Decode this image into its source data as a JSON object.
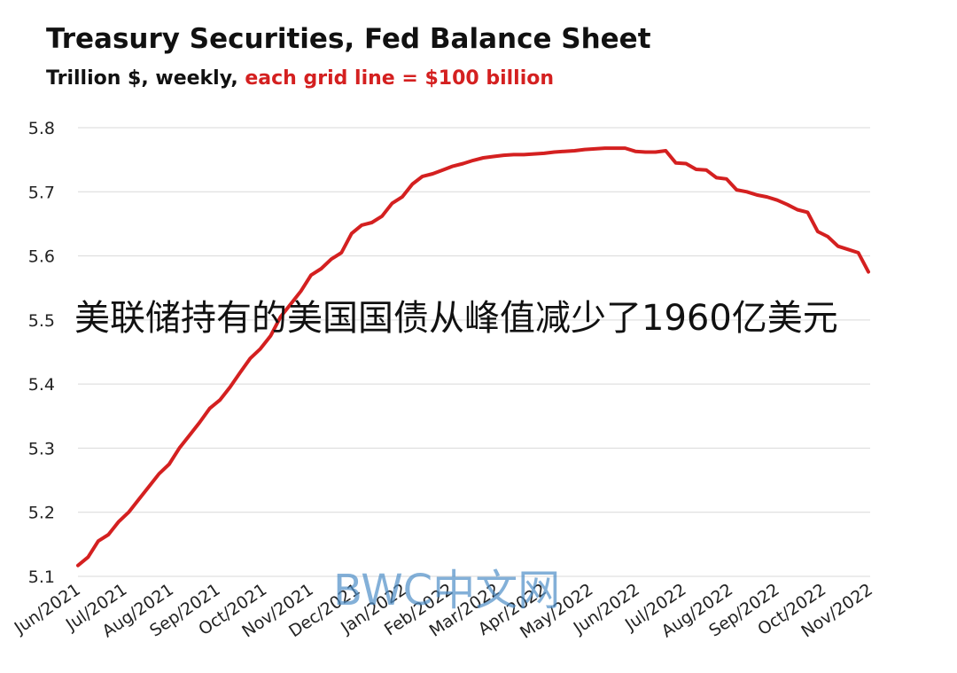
{
  "chart_data": {
    "type": "line",
    "title": "Treasury Securities, Fed Balance Sheet",
    "subtitle_black": "Trillion $, weekly,",
    "subtitle_red": "each grid line = $100 billion",
    "annotation": "美联储持有的美国国债从峰值减少了1960亿美元",
    "watermark": "BWC中文网",
    "line_color": "#d42020",
    "grid": true,
    "ylim": [
      5.1,
      5.8
    ],
    "y_ticks": [
      "5.1",
      "5.2",
      "5.3",
      "5.4",
      "5.5",
      "5.6",
      "5.7",
      "5.8"
    ],
    "x_ticks": [
      "Jun/2021",
      "Jul/2021",
      "Aug/2021",
      "Sep/2021",
      "Oct/2021",
      "Nov/2021",
      "Dec/2021",
      "Jan/2022",
      "Feb/2022",
      "Mar/2022",
      "Apr/2022",
      "May/2022",
      "Jun/2022",
      "Jul/2022",
      "Aug/2022",
      "Sep/2022",
      "Oct/2022",
      "Nov/2022"
    ],
    "series": [
      {
        "values": [
          5.117,
          5.13,
          5.155,
          5.165,
          5.185,
          5.2,
          5.22,
          5.24,
          5.26,
          5.275,
          5.3,
          5.32,
          5.34,
          5.362,
          5.375,
          5.395,
          5.418,
          5.44,
          5.455,
          5.475,
          5.505,
          5.525,
          5.545,
          5.57,
          5.58,
          5.595,
          5.605,
          5.635,
          5.648,
          5.652,
          5.662,
          5.682,
          5.692,
          5.712,
          5.724,
          5.728,
          5.734,
          5.74,
          5.744,
          5.749,
          5.753,
          5.755,
          5.757,
          5.758,
          5.758,
          5.759,
          5.76,
          5.762,
          5.763,
          5.764,
          5.766,
          5.767,
          5.768,
          5.768,
          5.768,
          5.763,
          5.762,
          5.762,
          5.764,
          5.745,
          5.744,
          5.735,
          5.734,
          5.722,
          5.72,
          5.703,
          5.7,
          5.695,
          5.692,
          5.687,
          5.68,
          5.672,
          5.668,
          5.638,
          5.63,
          5.615,
          5.61,
          5.605,
          5.575
        ]
      }
    ]
  }
}
